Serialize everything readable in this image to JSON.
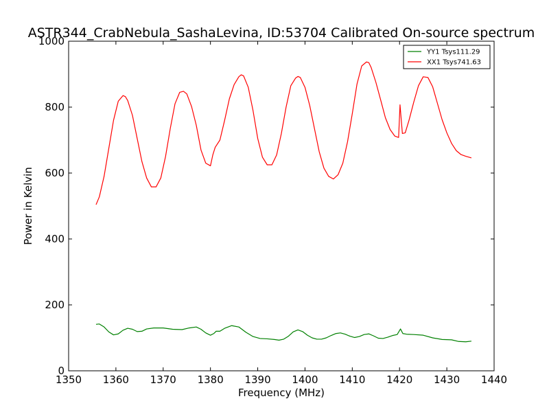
{
  "chart_data": {
    "type": "line",
    "title": "ASTR344_CrabNebula_SashaLevina, ID:53704 Calibrated On-source spectrum",
    "xlabel": "Frequency (MHz)",
    "ylabel": "Power in Kelvin",
    "xlim": [
      1350,
      1440
    ],
    "ylim": [
      0,
      1000
    ],
    "xticks": [
      1350,
      1360,
      1370,
      1380,
      1390,
      1400,
      1410,
      1420,
      1430,
      1440
    ],
    "yticks": [
      0,
      200,
      400,
      600,
      800,
      1000
    ],
    "grid": false,
    "legend": "top-right",
    "series": [
      {
        "name": "YY1 Tsys111.29",
        "color": "#008000",
        "x": [
          1355.8,
          1356.5,
          1357.5,
          1358.5,
          1359.5,
          1360.5,
          1361.5,
          1362.5,
          1363.5,
          1364.5,
          1365.5,
          1366.5,
          1368,
          1370,
          1372,
          1374,
          1375.5,
          1377,
          1378,
          1379,
          1380,
          1380.7,
          1381.2,
          1382,
          1383,
          1384.5,
          1386,
          1387.5,
          1389,
          1390.5,
          1392,
          1393.5,
          1394.5,
          1395.5,
          1396.5,
          1397.5,
          1398.5,
          1399.5,
          1400.5,
          1401.5,
          1402.5,
          1403.5,
          1404.5,
          1405.5,
          1406.5,
          1407.5,
          1408.5,
          1409.5,
          1410.5,
          1411.5,
          1412.5,
          1413.5,
          1414.5,
          1415.5,
          1416.5,
          1417.5,
          1418.5,
          1419.5,
          1420.2,
          1420.7,
          1421.5,
          1423,
          1425,
          1427,
          1429,
          1431,
          1432.5,
          1434,
          1435.2
        ],
        "values": [
          141,
          142,
          133,
          118,
          109,
          112,
          123,
          129,
          126,
          119,
          120,
          127,
          130,
          130,
          126,
          125,
          130,
          133,
          126,
          115,
          108,
          113,
          120,
          120,
          129,
          137,
          133,
          117,
          104,
          98,
          97,
          95,
          93,
          96,
          105,
          118,
          124,
          119,
          108,
          100,
          96,
          96,
          100,
          107,
          113,
          115,
          111,
          105,
          101,
          104,
          110,
          112,
          106,
          99,
          98,
          102,
          107,
          110,
          127,
          113,
          111,
          110,
          108,
          100,
          95,
          94,
          89,
          88,
          90
        ]
      },
      {
        "name": "XX1 Tsys741.63",
        "color": "#ff0000",
        "x": [
          1355.8,
          1356.5,
          1357.5,
          1358.5,
          1359.5,
          1360.5,
          1361.5,
          1362,
          1362.5,
          1363.5,
          1364.5,
          1365.5,
          1366.5,
          1367.5,
          1368.5,
          1369.5,
          1370.5,
          1371.5,
          1372.5,
          1373.5,
          1374.3,
          1375,
          1376,
          1377,
          1378,
          1379,
          1380,
          1380.5,
          1381,
          1382,
          1383,
          1384,
          1385,
          1386,
          1386.5,
          1387,
          1388,
          1389,
          1390,
          1391,
          1392,
          1393,
          1394,
          1395,
          1396,
          1397,
          1398,
          1398.5,
          1399,
          1400,
          1401,
          1402,
          1403,
          1404,
          1405,
          1406,
          1407,
          1408,
          1409,
          1410,
          1411,
          1412,
          1413,
          1413.5,
          1414,
          1415,
          1416,
          1417,
          1418,
          1419,
          1419.8,
          1420.1,
          1420.6,
          1421.2,
          1422,
          1423,
          1424,
          1425,
          1426,
          1427,
          1428,
          1429,
          1430,
          1431,
          1432,
          1433,
          1434,
          1435.2
        ],
        "values": [
          504,
          528,
          590,
          675,
          760,
          818,
          835,
          832,
          820,
          775,
          705,
          635,
          585,
          558,
          558,
          585,
          650,
          735,
          810,
          845,
          848,
          840,
          802,
          745,
          670,
          630,
          622,
          655,
          678,
          700,
          760,
          825,
          868,
          892,
          898,
          895,
          860,
          790,
          705,
          648,
          625,
          625,
          655,
          720,
          800,
          865,
          888,
          893,
          890,
          860,
          805,
          735,
          665,
          615,
          590,
          582,
          595,
          630,
          695,
          780,
          870,
          925,
          937,
          935,
          920,
          875,
          822,
          768,
          732,
          712,
          708,
          807,
          720,
          722,
          760,
          815,
          865,
          892,
          890,
          862,
          812,
          762,
          722,
          690,
          668,
          656,
          651,
          646
        ]
      }
    ]
  }
}
